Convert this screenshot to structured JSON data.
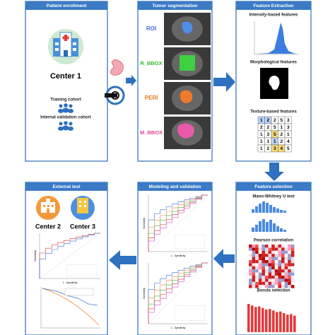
{
  "panels": {
    "enrollment": {
      "title": "Patient enrollment",
      "center": "Center 1",
      "training": "Training cohort",
      "internal": "Internal validation cohort"
    },
    "segmentation": {
      "title": "Tumor segmentation",
      "labels": [
        "ROI",
        "R_BBOX",
        "PERI",
        "M_BBOX"
      ]
    },
    "extraction": {
      "title": "Feature Extraction",
      "intensity": "Intensity-based features",
      "morphological": "Morphological features",
      "texture": "Texture-based features",
      "matrix": [
        [
          "1",
          "2",
          "2",
          "5",
          "3"
        ],
        [
          "2",
          "2",
          "5",
          "1",
          "3"
        ],
        [
          "1",
          "3",
          "5",
          "2",
          "1"
        ],
        [
          "1",
          "1",
          "1",
          "2",
          "4"
        ],
        [
          "1",
          "2",
          "3",
          "4",
          "5"
        ]
      ]
    },
    "selection": {
      "title": "Feature selection",
      "mann": "Mann-Whitney U test",
      "pearson": "Pearson correlation",
      "boruta": "Boruta selection"
    },
    "modeling": {
      "title": "Modeling and validation",
      "x_label": "1 - Specificity",
      "y_label": "Sensitivity"
    },
    "external": {
      "title": "External test",
      "center2": "Center 2",
      "center3": "Center 3"
    }
  }
}
